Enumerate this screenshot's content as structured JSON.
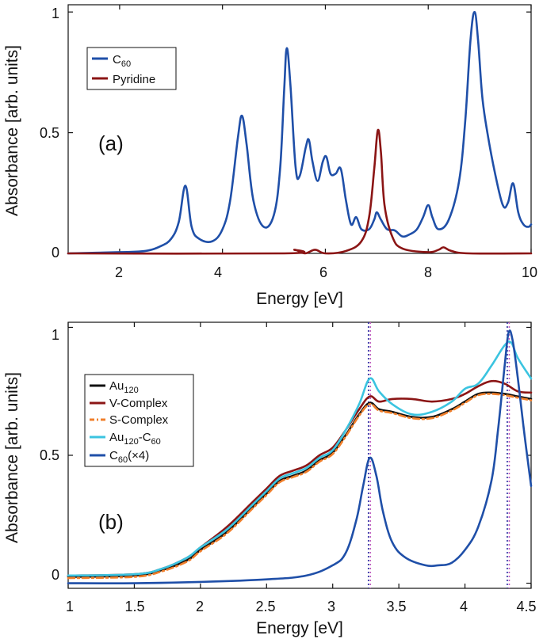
{
  "chart_data": [
    {
      "panel": "(a)",
      "type": "line",
      "xlabel": "Energy [eV]",
      "ylabel": "Absorbance [arb. units]",
      "xlim": [
        1,
        10
      ],
      "ylim": [
        0,
        1.03
      ],
      "xticks": [
        "2",
        "4",
        "6",
        "8",
        "10"
      ],
      "yticks": [
        "0",
        "0.5",
        "1"
      ],
      "xtick_values": [
        2,
        4,
        6,
        8,
        10
      ],
      "ytick_values": [
        0,
        0.5,
        1
      ],
      "legend_position": "top-left",
      "series": [
        {
          "name": "C60",
          "label_main": "C",
          "label_sub": "60",
          "color": "#1f4fa8",
          "dash": "",
          "x": [
            1.0,
            2.0,
            2.5,
            2.8,
            3.0,
            3.15,
            3.28,
            3.4,
            3.55,
            3.8,
            4.0,
            4.15,
            4.3,
            4.38,
            4.47,
            4.6,
            4.8,
            5.0,
            5.12,
            5.2,
            5.25,
            5.32,
            5.42,
            5.5,
            5.62,
            5.68,
            5.75,
            5.85,
            5.95,
            6.02,
            6.1,
            6.2,
            6.3,
            6.4,
            6.5,
            6.6,
            6.7,
            6.85,
            6.95,
            7.0,
            7.08,
            7.2,
            7.35,
            7.5,
            7.65,
            7.78,
            7.9,
            8.0,
            8.08,
            8.2,
            8.4,
            8.6,
            8.72,
            8.82,
            8.9,
            8.97,
            9.05,
            9.15,
            9.3,
            9.45,
            9.55,
            9.65,
            9.75,
            9.85,
            9.95,
            10.0
          ],
          "y": [
            0.0,
            0.005,
            0.01,
            0.03,
            0.06,
            0.13,
            0.28,
            0.11,
            0.06,
            0.05,
            0.1,
            0.22,
            0.48,
            0.57,
            0.45,
            0.22,
            0.11,
            0.16,
            0.35,
            0.68,
            0.85,
            0.7,
            0.36,
            0.32,
            0.44,
            0.47,
            0.38,
            0.3,
            0.38,
            0.4,
            0.33,
            0.33,
            0.35,
            0.22,
            0.12,
            0.15,
            0.1,
            0.1,
            0.14,
            0.17,
            0.14,
            0.1,
            0.095,
            0.07,
            0.08,
            0.1,
            0.15,
            0.2,
            0.15,
            0.1,
            0.14,
            0.3,
            0.55,
            0.88,
            1.0,
            0.88,
            0.65,
            0.5,
            0.33,
            0.2,
            0.21,
            0.29,
            0.17,
            0.12,
            0.11,
            0.12
          ]
        },
        {
          "name": "Pyridine",
          "label_main": "Pyridine",
          "label_sub": "",
          "color": "#8b1515",
          "dash": "",
          "x": [
            1.0,
            5.2,
            5.4,
            5.6,
            5.8,
            6.0,
            6.4,
            6.7,
            6.85,
            6.95,
            7.02,
            7.08,
            7.15,
            7.3,
            7.5,
            8.0,
            8.2,
            8.3,
            8.45,
            8.8,
            10.0
          ],
          "y": [
            0.0,
            0.0,
            0.015,
            0.0,
            0.015,
            0.0,
            0.01,
            0.05,
            0.15,
            0.35,
            0.51,
            0.42,
            0.2,
            0.07,
            0.02,
            0.005,
            0.015,
            0.025,
            0.01,
            0.0,
            0.0
          ]
        }
      ]
    },
    {
      "panel": "(b)",
      "type": "line",
      "xlabel": "Energy [eV]",
      "ylabel": "Absorbance [arb. units]",
      "xlim": [
        1,
        4.5
      ],
      "ylim": [
        -0.02,
        1.02
      ],
      "xticks": [
        "1",
        "1.5",
        "2",
        "2.5",
        "3",
        "3.5",
        "4",
        "4.5"
      ],
      "yticks": [
        "0",
        "0.5",
        "1"
      ],
      "xtick_values": [
        1,
        1.5,
        2,
        2.5,
        3,
        3.5,
        4,
        4.5
      ],
      "ytick_values": [
        0,
        0.5,
        1
      ],
      "legend_position": "top-left",
      "vlines": [
        {
          "x": 3.27,
          "color": "#2a2aa0"
        },
        {
          "x": 3.285,
          "color": "#c060c0"
        },
        {
          "x": 4.32,
          "color": "#2a2aa0"
        },
        {
          "x": 4.335,
          "color": "#c060c0"
        }
      ],
      "series": [
        {
          "name": "Au120",
          "label_main": "Au",
          "label_sub": "120",
          "color": "#111111",
          "dash": "",
          "x": [
            1.0,
            1.5,
            1.7,
            1.9,
            2.0,
            2.2,
            2.4,
            2.5,
            2.6,
            2.7,
            2.8,
            2.9,
            3.0,
            3.1,
            3.2,
            3.28,
            3.35,
            3.45,
            3.6,
            3.75,
            3.9,
            4.0,
            4.1,
            4.2,
            4.3,
            4.4,
            4.5
          ],
          "y": [
            0.025,
            0.03,
            0.05,
            0.09,
            0.13,
            0.2,
            0.3,
            0.35,
            0.4,
            0.42,
            0.44,
            0.48,
            0.51,
            0.58,
            0.66,
            0.705,
            0.68,
            0.67,
            0.65,
            0.65,
            0.68,
            0.71,
            0.74,
            0.745,
            0.74,
            0.73,
            0.72
          ]
        },
        {
          "name": "V-Complex",
          "label_main": "V-Complex",
          "label_sub": "",
          "color": "#8b1515",
          "dash": "",
          "x": [
            1.0,
            1.5,
            1.7,
            1.9,
            2.0,
            2.2,
            2.4,
            2.5,
            2.6,
            2.7,
            2.8,
            2.9,
            3.0,
            3.1,
            3.2,
            3.28,
            3.35,
            3.45,
            3.6,
            3.75,
            3.9,
            4.0,
            4.1,
            4.2,
            4.3,
            4.4,
            4.5
          ],
          "y": [
            0.03,
            0.035,
            0.055,
            0.1,
            0.14,
            0.22,
            0.32,
            0.37,
            0.42,
            0.44,
            0.46,
            0.5,
            0.53,
            0.6,
            0.68,
            0.73,
            0.71,
            0.72,
            0.72,
            0.71,
            0.72,
            0.74,
            0.77,
            0.79,
            0.78,
            0.75,
            0.745
          ]
        },
        {
          "name": "S-Complex",
          "label_main": "S-Complex",
          "label_sub": "",
          "color": "#f07f2b",
          "dash": "8 4 2 4",
          "x": [
            1.0,
            1.5,
            1.7,
            1.9,
            2.0,
            2.2,
            2.4,
            2.5,
            2.6,
            2.7,
            2.8,
            2.9,
            3.0,
            3.1,
            3.2,
            3.28,
            3.35,
            3.45,
            3.6,
            3.75,
            3.9,
            4.0,
            4.1,
            4.2,
            4.3,
            4.4,
            4.5
          ],
          "y": [
            0.02,
            0.025,
            0.045,
            0.085,
            0.125,
            0.195,
            0.295,
            0.345,
            0.395,
            0.415,
            0.435,
            0.475,
            0.505,
            0.575,
            0.655,
            0.7,
            0.675,
            0.665,
            0.645,
            0.645,
            0.675,
            0.705,
            0.735,
            0.74,
            0.735,
            0.725,
            0.715
          ]
        },
        {
          "name": "Au120-C60",
          "label_main": "Au",
          "label_sub": "120",
          "label_main2": "-C",
          "label_sub2": "60",
          "color": "#3bc4e0",
          "dash": "",
          "x": [
            1.0,
            1.5,
            1.7,
            1.9,
            2.0,
            2.2,
            2.4,
            2.5,
            2.6,
            2.7,
            2.8,
            2.9,
            3.0,
            3.1,
            3.2,
            3.28,
            3.35,
            3.45,
            3.6,
            3.75,
            3.9,
            4.0,
            4.1,
            4.2,
            4.3,
            4.35,
            4.4,
            4.5
          ],
          "y": [
            0.03,
            0.035,
            0.055,
            0.1,
            0.14,
            0.21,
            0.31,
            0.36,
            0.41,
            0.43,
            0.45,
            0.49,
            0.52,
            0.6,
            0.7,
            0.8,
            0.75,
            0.7,
            0.66,
            0.67,
            0.71,
            0.76,
            0.78,
            0.85,
            0.93,
            0.94,
            0.88,
            0.8
          ]
        },
        {
          "name": "C60(×4)",
          "label_main": "C",
          "label_sub": "60",
          "label_main2": "(×4)",
          "label_sub2": "",
          "color": "#1f4fa8",
          "dash": "",
          "x": [
            1.0,
            1.5,
            2.0,
            2.5,
            2.8,
            3.0,
            3.1,
            3.18,
            3.23,
            3.28,
            3.33,
            3.38,
            3.45,
            3.55,
            3.7,
            3.8,
            3.9,
            4.0,
            4.1,
            4.2,
            4.25,
            4.3,
            4.33,
            4.36,
            4.4,
            4.45,
            4.5
          ],
          "y": [
            0.0,
            0.0,
            0.005,
            0.015,
            0.03,
            0.07,
            0.12,
            0.25,
            0.38,
            0.49,
            0.42,
            0.28,
            0.16,
            0.1,
            0.07,
            0.07,
            0.08,
            0.13,
            0.22,
            0.4,
            0.6,
            0.85,
            0.98,
            0.95,
            0.8,
            0.58,
            0.38
          ]
        }
      ]
    }
  ]
}
